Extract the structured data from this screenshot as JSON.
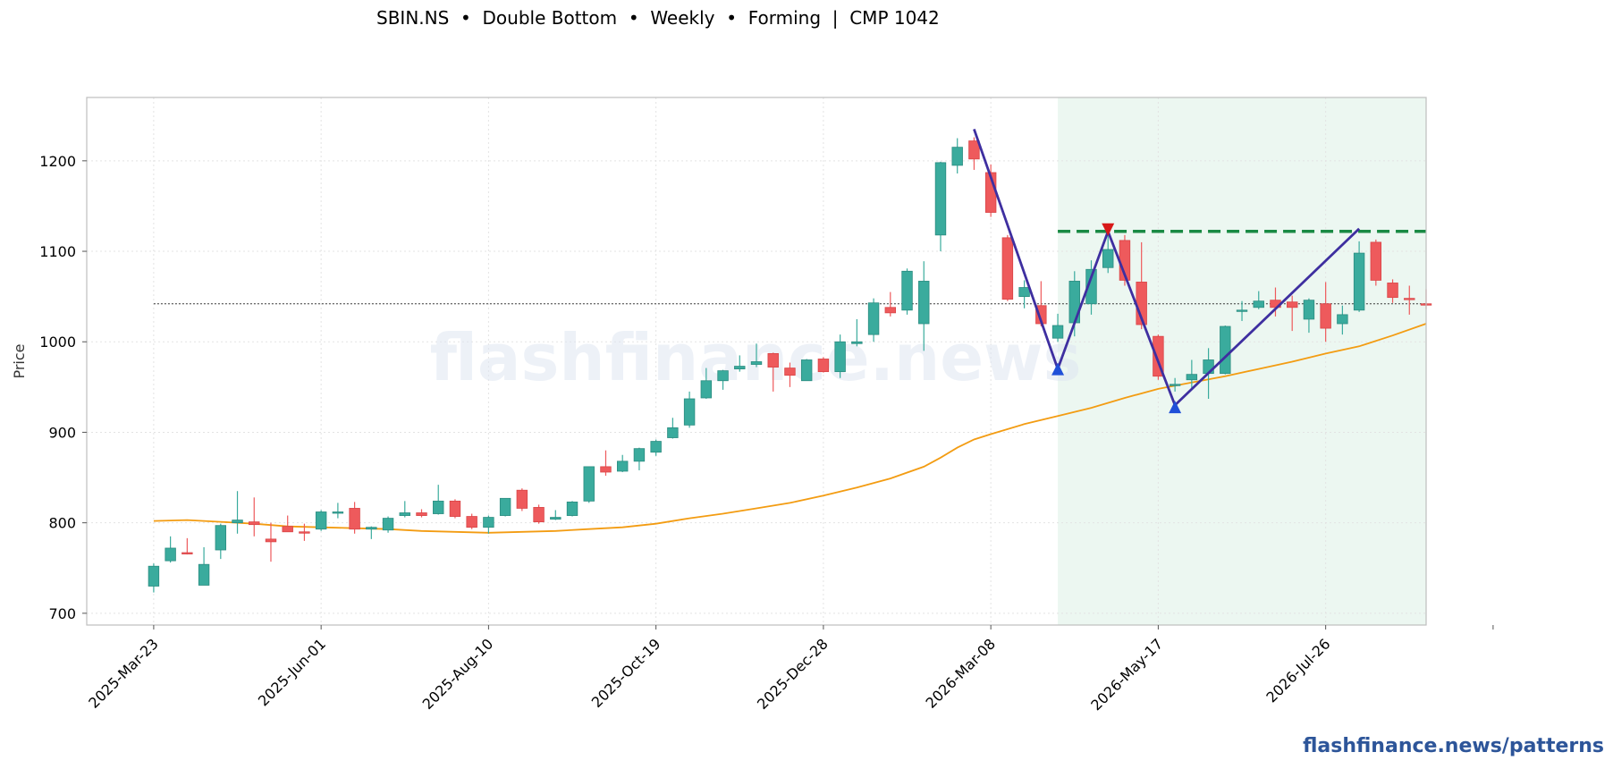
{
  "title": "SBIN.NS  •  Double Bottom  •  Weekly  •  Forming  |  CMP 1042",
  "footer": "flashfinance.news/patterns",
  "watermark": "flashfinance.news",
  "colors": {
    "up": "#3aab9d",
    "down": "#ee5a5c",
    "ma": "#f39c12",
    "pattern": "#3e2fa0",
    "neckline": "#1a8a44",
    "zone": "#e5f4ec",
    "cmp_line": "#333333",
    "trough_marker": "#2050d8",
    "peak_marker": "#d81818",
    "footer": "#2d5599"
  },
  "chart_data": {
    "type": "candlestick",
    "ylabel": "Price",
    "ylim": [
      687,
      1270
    ],
    "yticks": [
      700,
      800,
      900,
      1000,
      1100,
      1200
    ],
    "x_start": "2025-03-23",
    "x_range": [
      -4,
      76
    ],
    "xticks": [
      {
        "index": 0,
        "label": "2025-Mar-23"
      },
      {
        "index": 10,
        "label": "2025-Jun-01"
      },
      {
        "index": 20,
        "label": "2025-Aug-10"
      },
      {
        "index": 30,
        "label": "2025-Oct-19"
      },
      {
        "index": 40,
        "label": "2025-Dec-28"
      },
      {
        "index": 50,
        "label": "2026-Mar-08"
      },
      {
        "index": 60,
        "label": "2026-May-17"
      },
      {
        "index": 70,
        "label": "2026-Jul-26"
      },
      {
        "index": 80,
        "label": ""
      }
    ],
    "grid": true,
    "cmp": 1042,
    "candles": [
      [
        730,
        752,
        755,
        723
      ],
      [
        758,
        772,
        785,
        756
      ],
      [
        767,
        766,
        783,
        765
      ],
      [
        731,
        754,
        773,
        731
      ],
      [
        770,
        797,
        799,
        760
      ],
      [
        800,
        803,
        835,
        788
      ],
      [
        801,
        798,
        828,
        785
      ],
      [
        782,
        779,
        800,
        757
      ],
      [
        796,
        790,
        808,
        790
      ],
      [
        790,
        789,
        799,
        780
      ],
      [
        793,
        812,
        814,
        791
      ],
      [
        812,
        812,
        822,
        805
      ],
      [
        816,
        793,
        823,
        788
      ],
      [
        793,
        795,
        796,
        782
      ],
      [
        792,
        805,
        807,
        789
      ],
      [
        808,
        811,
        824,
        806
      ],
      [
        811,
        808,
        815,
        806
      ],
      [
        810,
        824,
        842,
        809
      ],
      [
        824,
        807,
        826,
        805
      ],
      [
        807,
        795,
        810,
        793
      ],
      [
        795,
        806,
        808,
        788
      ],
      [
        808,
        827,
        827,
        807
      ],
      [
        836,
        816,
        838,
        813
      ],
      [
        817,
        801,
        820,
        799
      ],
      [
        804,
        806,
        814,
        803
      ],
      [
        808,
        823,
        824,
        807
      ],
      [
        824,
        862,
        862,
        822
      ],
      [
        862,
        856,
        880,
        852
      ],
      [
        857,
        868,
        875,
        856
      ],
      [
        868,
        882,
        883,
        858
      ],
      [
        878,
        890,
        892,
        874
      ],
      [
        894,
        905,
        916,
        893
      ],
      [
        908,
        937,
        945,
        905
      ],
      [
        938,
        957,
        971,
        937
      ],
      [
        957,
        968,
        969,
        947
      ],
      [
        970,
        973,
        985,
        967
      ],
      [
        975,
        978,
        998,
        972
      ],
      [
        987,
        972,
        988,
        945
      ],
      [
        971,
        963,
        977,
        950
      ],
      [
        957,
        980,
        981,
        957
      ],
      [
        981,
        967,
        983,
        966
      ],
      [
        967,
        1000,
        1008,
        960
      ],
      [
        998,
        1000,
        1025,
        995
      ],
      [
        1008,
        1043,
        1048,
        1000
      ],
      [
        1038,
        1032,
        1055,
        1028
      ],
      [
        1035,
        1078,
        1081,
        1030
      ],
      [
        1020,
        1067,
        1089,
        990
      ],
      [
        1118,
        1198,
        1199,
        1100
      ],
      [
        1195,
        1215,
        1225,
        1186
      ],
      [
        1222,
        1202,
        1226,
        1190
      ],
      [
        1187,
        1143,
        1196,
        1138
      ],
      [
        1115,
        1047,
        1118,
        1045
      ],
      [
        1050,
        1060,
        1068,
        1037
      ],
      [
        1040,
        1020,
        1067,
        1017
      ],
      [
        1004,
        1018,
        1031,
        1000
      ],
      [
        1021,
        1067,
        1078,
        1006
      ],
      [
        1042,
        1080,
        1090,
        1030
      ],
      [
        1082,
        1102,
        1128,
        1076
      ],
      [
        1112,
        1068,
        1118,
        1062
      ],
      [
        1066,
        1019,
        1110,
        1014
      ],
      [
        1006,
        962,
        1008,
        958
      ],
      [
        952,
        953,
        960,
        945
      ],
      [
        958,
        964,
        980,
        948
      ],
      [
        965,
        980,
        993,
        937
      ],
      [
        965,
        1017,
        1018,
        964
      ],
      [
        1035,
        1035,
        1045,
        1023
      ],
      [
        1038,
        1045,
        1056,
        1036
      ],
      [
        1046,
        1038,
        1060,
        1028
      ],
      [
        1044,
        1038,
        1051,
        1012
      ],
      [
        1025,
        1046,
        1048,
        1010
      ],
      [
        1042,
        1015,
        1066,
        1000
      ],
      [
        1020,
        1030,
        1040,
        1008
      ],
      [
        1035,
        1098,
        1111,
        1033
      ],
      [
        1110,
        1068,
        1113,
        1062
      ],
      [
        1065,
        1049,
        1069,
        1043
      ],
      [
        1048,
        1047,
        1062,
        1030
      ],
      [
        1042,
        1041,
        1058,
        1036
      ]
    ],
    "moving_average": [
      [
        0,
        802
      ],
      [
        2,
        803
      ],
      [
        4,
        801
      ],
      [
        6,
        799
      ],
      [
        8,
        796
      ],
      [
        10,
        795
      ],
      [
        12,
        794
      ],
      [
        14,
        793
      ],
      [
        16,
        791
      ],
      [
        18,
        790
      ],
      [
        20,
        789
      ],
      [
        22,
        790
      ],
      [
        24,
        791
      ],
      [
        26,
        793
      ],
      [
        28,
        795
      ],
      [
        30,
        799
      ],
      [
        32,
        805
      ],
      [
        34,
        810
      ],
      [
        36,
        816
      ],
      [
        38,
        822
      ],
      [
        40,
        830
      ],
      [
        42,
        839
      ],
      [
        44,
        849
      ],
      [
        46,
        862
      ],
      [
        47,
        872
      ],
      [
        48,
        883
      ],
      [
        49,
        892
      ],
      [
        50,
        898
      ],
      [
        52,
        909
      ],
      [
        54,
        918
      ],
      [
        56,
        927
      ],
      [
        58,
        938
      ],
      [
        60,
        948
      ],
      [
        62,
        955
      ],
      [
        64,
        962
      ],
      [
        66,
        970
      ],
      [
        68,
        978
      ],
      [
        70,
        987
      ],
      [
        72,
        995
      ],
      [
        74,
        1007
      ],
      [
        76,
        1020
      ]
    ],
    "pattern_lines": [
      [
        [
          49,
          1235
        ],
        [
          54,
          970
        ],
        [
          57,
          1122
        ],
        [
          61,
          930
        ],
        [
          72,
          1125
        ]
      ]
    ],
    "neckline": {
      "value": 1122,
      "from": 54,
      "to": 76
    },
    "zone": {
      "from": 54,
      "to": 76
    },
    "markers": [
      {
        "x": 54,
        "y": 970,
        "type": "trough"
      },
      {
        "x": 57,
        "y": 1124,
        "type": "peak"
      },
      {
        "x": 61,
        "y": 928,
        "type": "trough"
      }
    ]
  }
}
